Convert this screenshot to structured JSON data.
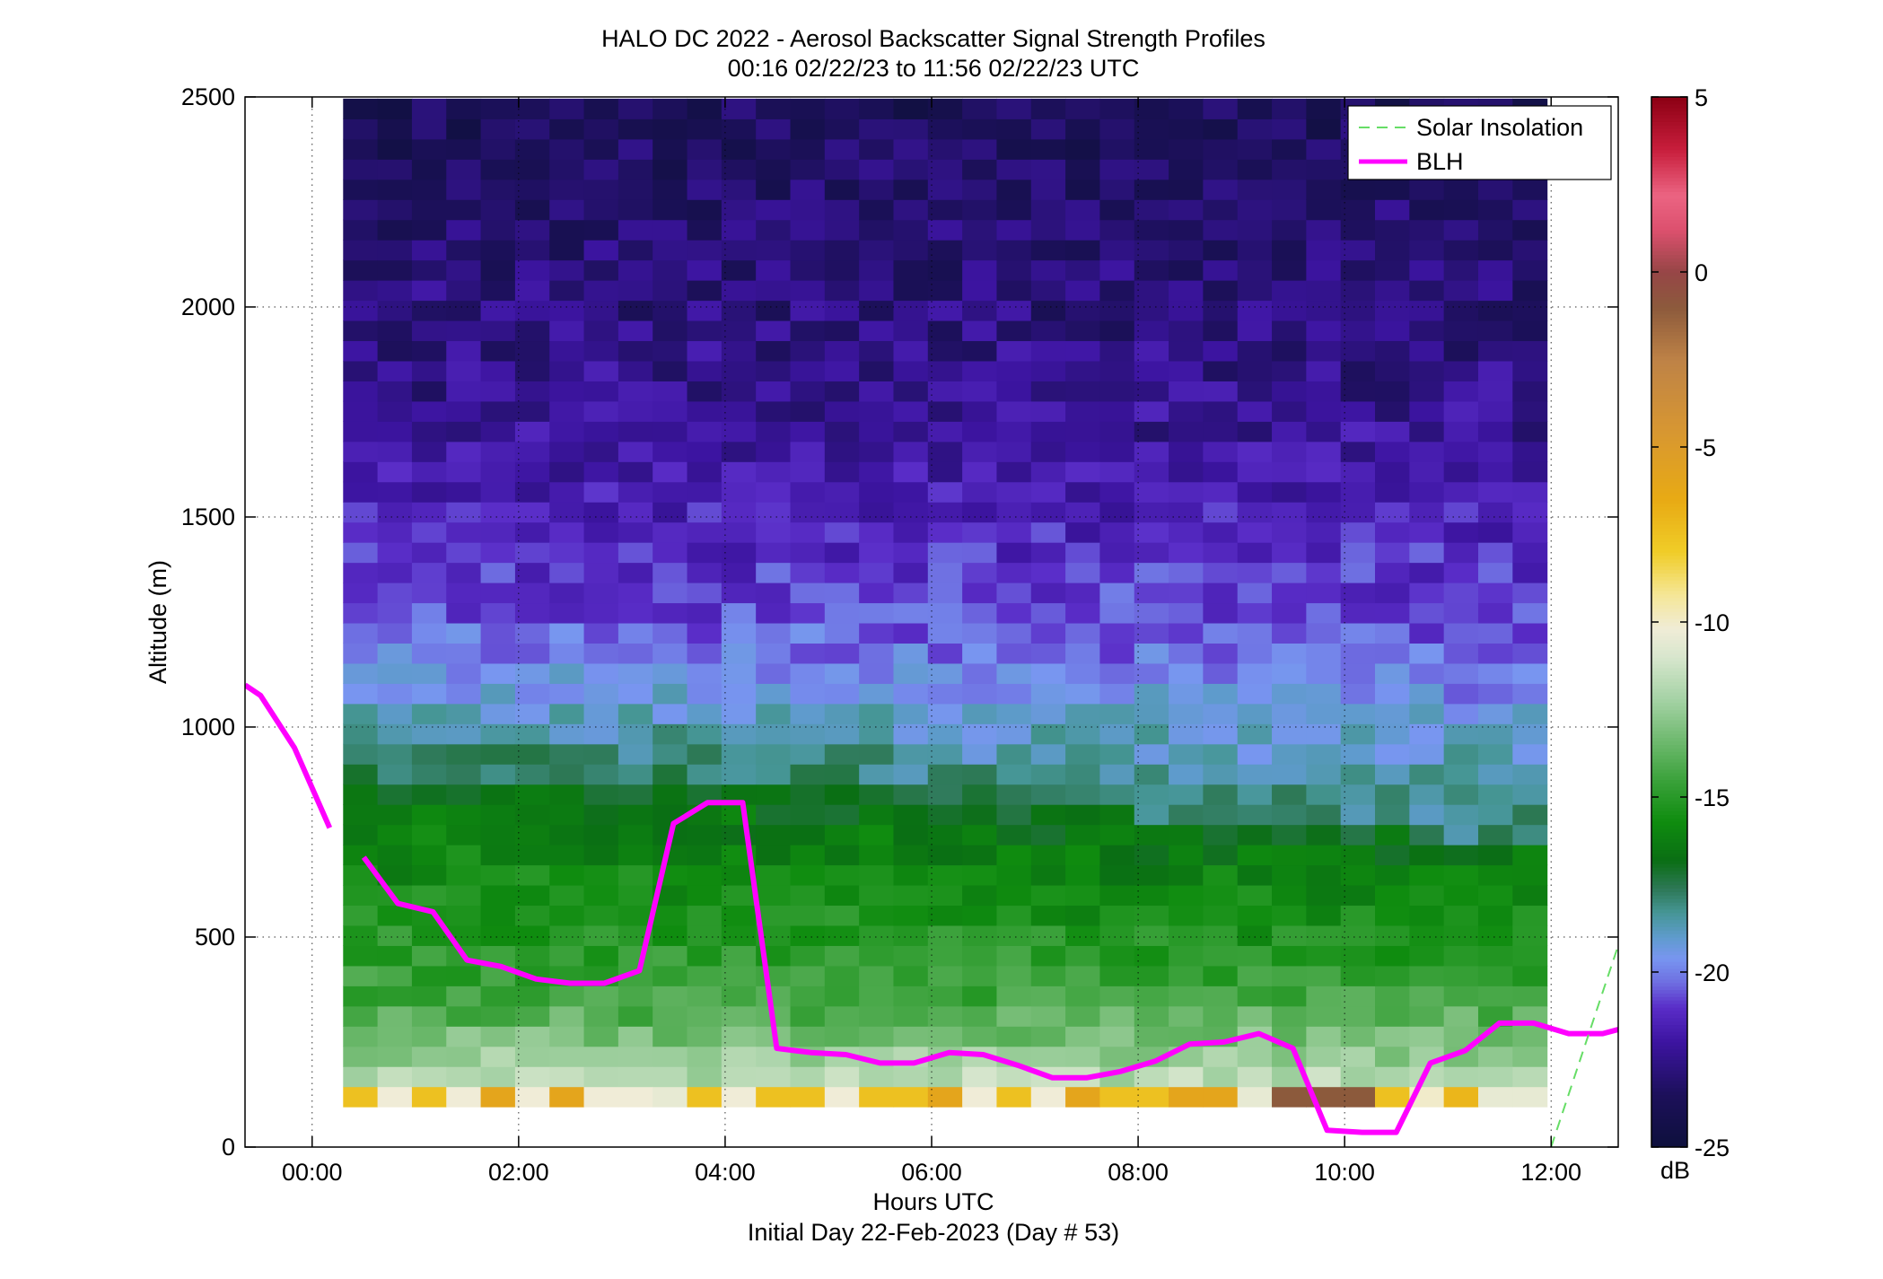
{
  "chart_data": {
    "type": "heatmap",
    "title": "HALO DC 2022 - Aerosol Backscatter Signal Strength Profiles",
    "subtitle": "00:16 02/22/23 to 11:56 02/22/23  UTC",
    "xlabel": "Hours UTC",
    "xlabel2": "Initial Day 22-Feb-2023 (Day # 53)",
    "ylabel": "Altitude (m)",
    "xlim": [
      -0.65,
      12.65
    ],
    "ylim": [
      0,
      2500
    ],
    "x_ticks": [
      0,
      2,
      4,
      6,
      8,
      10,
      12
    ],
    "x_tick_labels": [
      "00:00",
      "02:00",
      "04:00",
      "06:00",
      "08:00",
      "10:00",
      "12:00"
    ],
    "y_ticks": [
      0,
      500,
      1000,
      1500,
      2000,
      2500
    ],
    "y_tick_labels": [
      "0",
      "500",
      "1000",
      "1500",
      "2000",
      "2500"
    ],
    "grid": true,
    "legend_position": "top-right",
    "legend": [
      {
        "label": "Solar Insolation",
        "color": "#66dd66",
        "style": "dashed"
      },
      {
        "label": "BLH",
        "color": "#ff00ff",
        "style": "solid"
      }
    ],
    "colorbar": {
      "label": "dB",
      "range": [
        -25,
        5
      ],
      "ticks": [
        5,
        0,
        -5,
        -10,
        -15,
        -20,
        -25
      ],
      "tick_labels": [
        "5",
        "0",
        "-5",
        "-10",
        "-15",
        "-20",
        "-25"
      ]
    },
    "heatmap": {
      "x_start": 0.3,
      "x_end": 11.96,
      "columns": 35,
      "y_start": 96,
      "y_end": 2500,
      "row_height": 48
    },
    "series": [
      {
        "name": "BLH",
        "color": "#ff00ff",
        "x": [
          -0.65,
          -0.5,
          -0.17,
          0.17
        ],
        "y": [
          1100,
          1075,
          950,
          760
        ]
      },
      {
        "name": "BLH",
        "color": "#ff00ff",
        "x": [
          0.5,
          0.83,
          1.17,
          1.5,
          1.83,
          2.17,
          2.5,
          2.83,
          3.17,
          3.5,
          3.83,
          4.17,
          4.5,
          4.83,
          5.17,
          5.5,
          5.83,
          6.17,
          6.5,
          6.83,
          7.17,
          7.5,
          7.83,
          8.17,
          8.5,
          8.83,
          9.17,
          9.5,
          9.83,
          10.17,
          10.5,
          10.83,
          11.17,
          11.5,
          11.83,
          12.17,
          12.5,
          12.65
        ],
        "y": [
          690,
          580,
          560,
          445,
          430,
          400,
          390,
          390,
          420,
          770,
          820,
          820,
          235,
          225,
          220,
          200,
          200,
          225,
          220,
          195,
          165,
          165,
          180,
          205,
          245,
          250,
          270,
          235,
          40,
          35,
          35,
          200,
          230,
          295,
          295,
          270,
          270,
          280
        ]
      },
      {
        "name": "Solar Insolation",
        "color": "#66dd66",
        "x": [
          12.0,
          12.65
        ],
        "y": [
          0,
          480
        ]
      }
    ]
  }
}
